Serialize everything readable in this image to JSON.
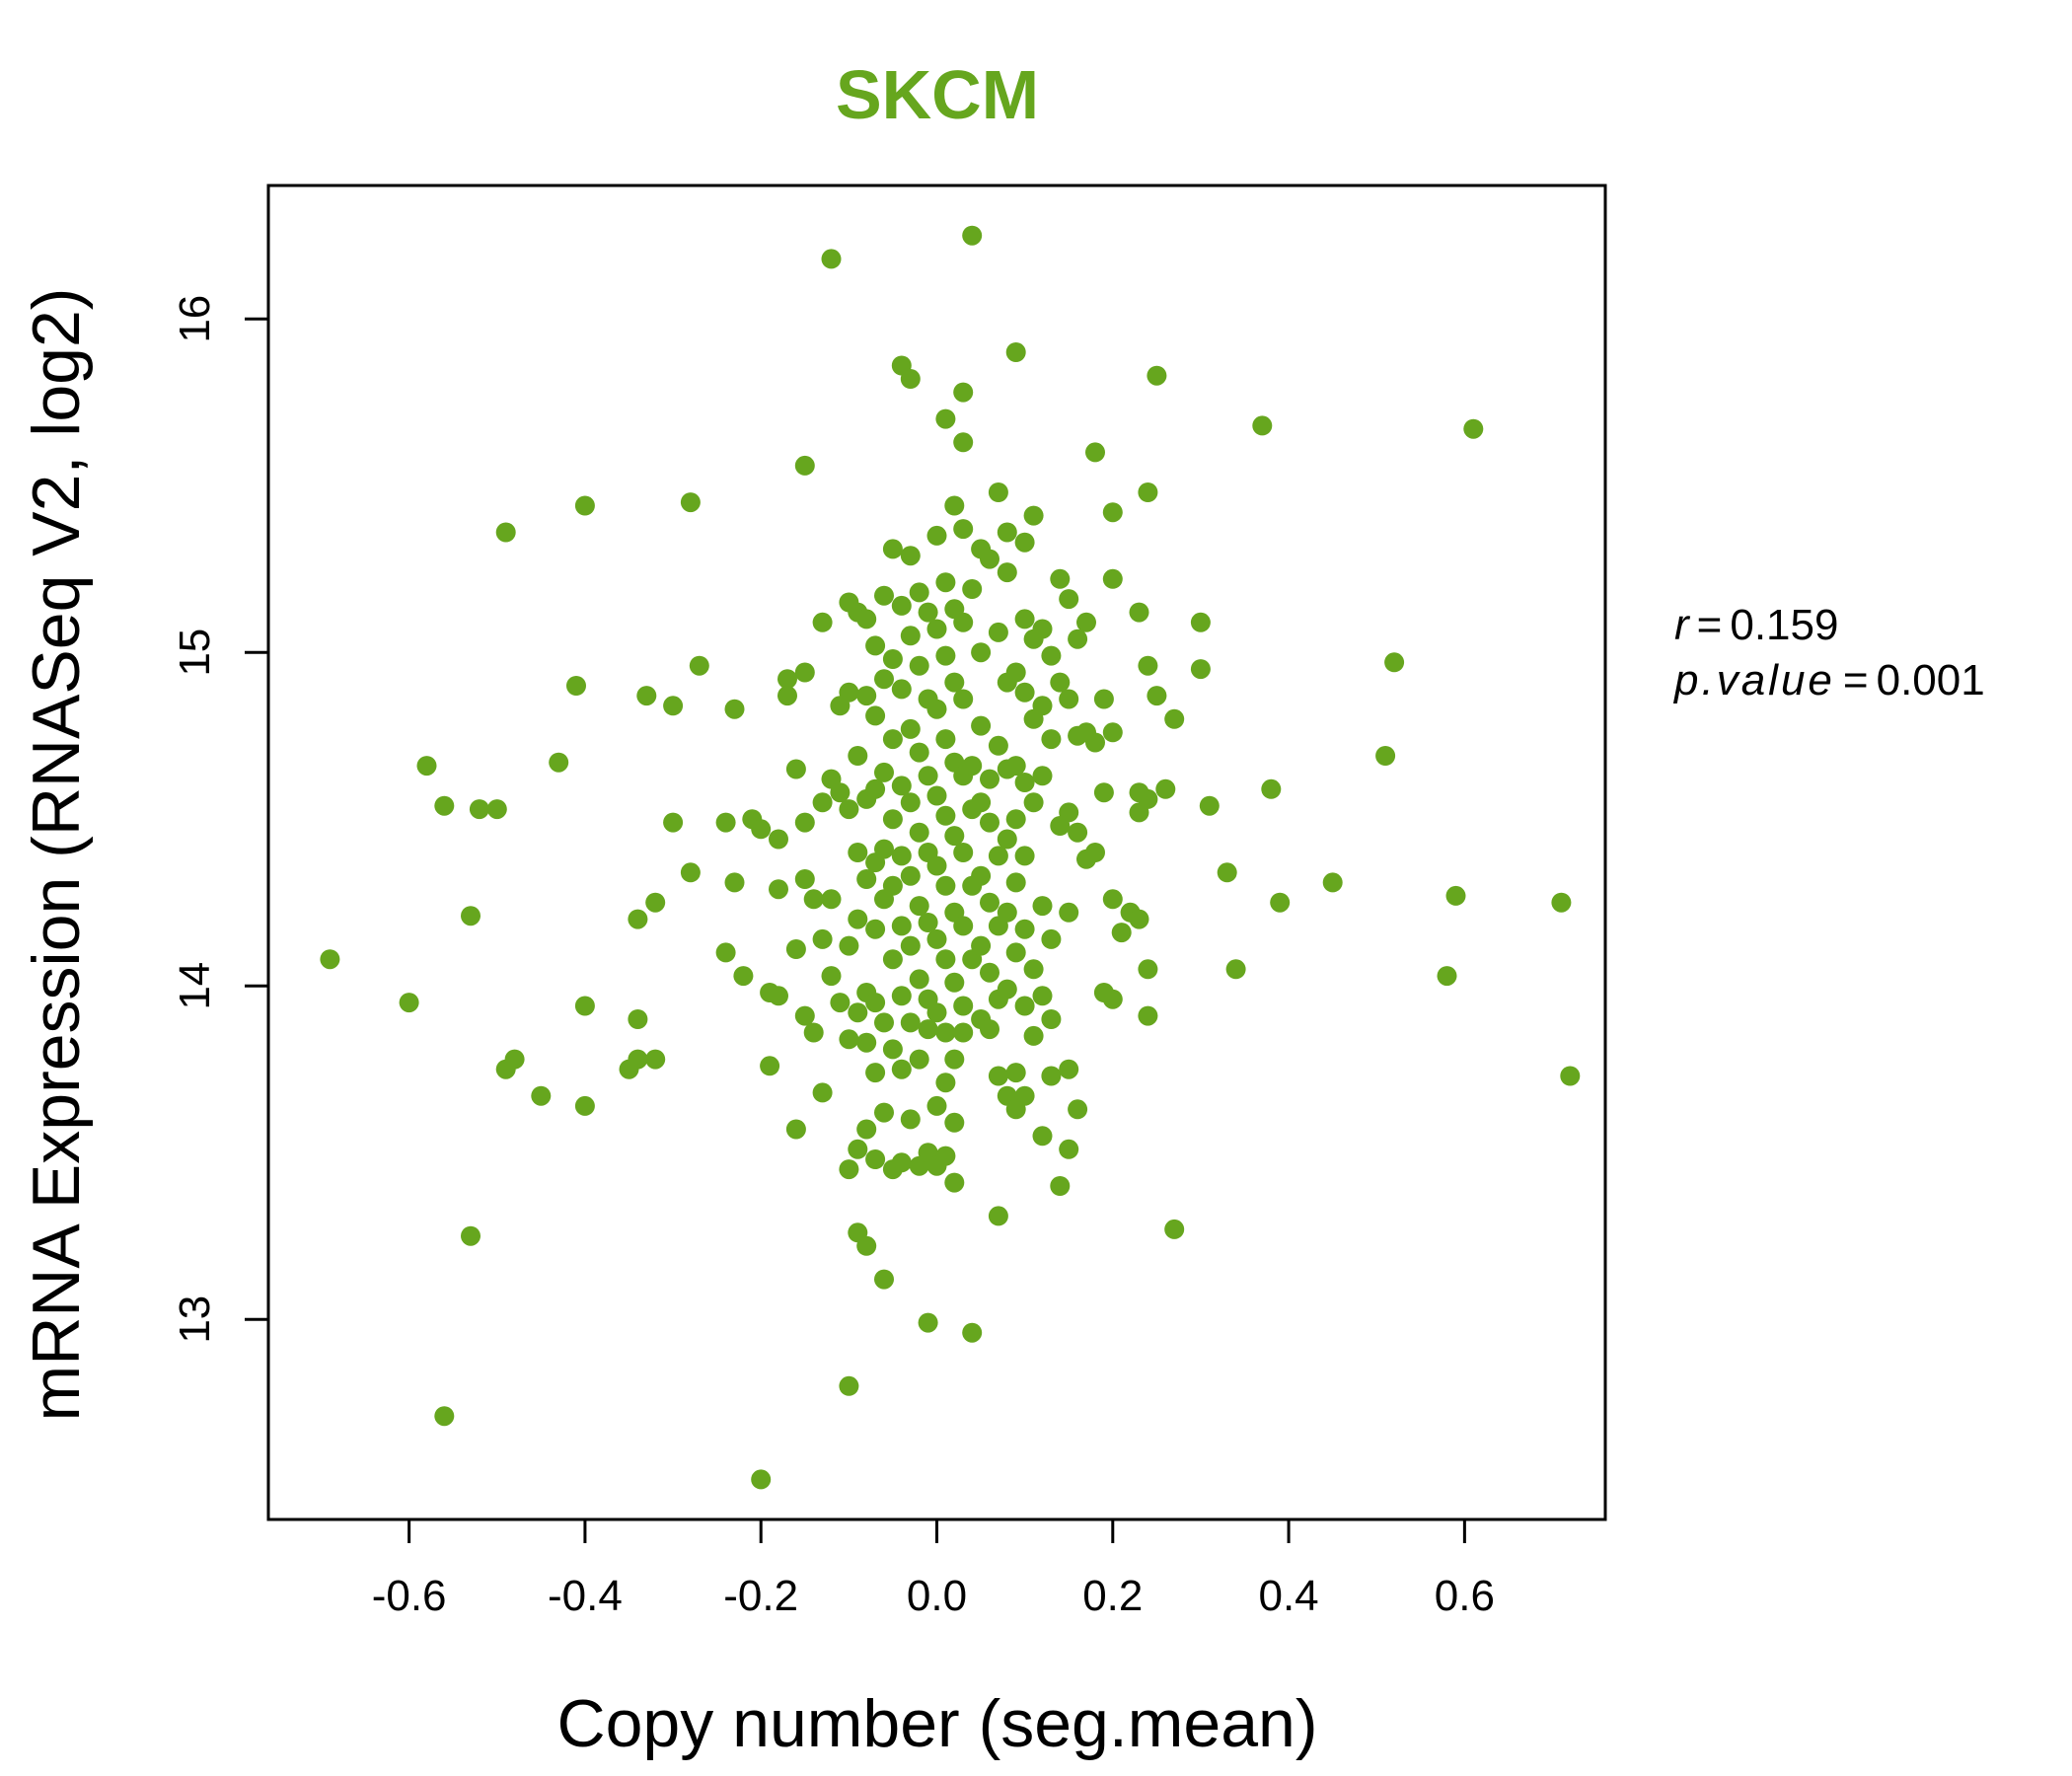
{
  "chart_data": {
    "type": "scatter",
    "title": "SKCM",
    "xlabel": "Copy number (seg.mean)",
    "ylabel": "mRNA Expression (RNASeq V2, log2)",
    "xlim": [
      -0.76,
      0.76
    ],
    "ylim": [
      12.4,
      16.4
    ],
    "xticks": [
      "-0.6",
      "-0.4",
      "-0.2",
      "0.0",
      "0.2",
      "0.4",
      "0.6"
    ],
    "xtick_values": [
      -0.6,
      -0.4,
      -0.2,
      0.0,
      0.2,
      0.4,
      0.6
    ],
    "yticks": [
      "13",
      "14",
      "15",
      "16"
    ],
    "ytick_values": [
      13,
      14,
      15,
      16
    ],
    "color": "#66a61e",
    "stats": {
      "r_label": "r",
      "r_value": "0.159",
      "p_label": "p.value",
      "p_value": "0.001"
    },
    "points": [
      [
        -0.69,
        14.08
      ],
      [
        -0.6,
        13.95
      ],
      [
        -0.58,
        14.66
      ],
      [
        -0.56,
        14.54
      ],
      [
        -0.56,
        12.71
      ],
      [
        -0.53,
        14.21
      ],
      [
        -0.53,
        13.25
      ],
      [
        -0.52,
        14.53
      ],
      [
        -0.5,
        14.53
      ],
      [
        -0.49,
        15.36
      ],
      [
        -0.49,
        13.75
      ],
      [
        -0.48,
        13.78
      ],
      [
        -0.45,
        13.67
      ],
      [
        -0.43,
        14.67
      ],
      [
        -0.41,
        14.9
      ],
      [
        -0.4,
        15.44
      ],
      [
        -0.4,
        13.94
      ],
      [
        -0.4,
        13.64
      ],
      [
        -0.35,
        13.75
      ],
      [
        -0.34,
        14.2
      ],
      [
        -0.34,
        13.9
      ],
      [
        -0.34,
        13.78
      ],
      [
        -0.33,
        14.87
      ],
      [
        -0.32,
        14.25
      ],
      [
        -0.32,
        13.78
      ],
      [
        -0.3,
        14.84
      ],
      [
        -0.3,
        14.49
      ],
      [
        -0.28,
        15.45
      ],
      [
        -0.28,
        14.34
      ],
      [
        -0.27,
        14.96
      ],
      [
        -0.24,
        14.49
      ],
      [
        -0.23,
        14.83
      ],
      [
        -0.23,
        14.31
      ],
      [
        -0.24,
        14.1
      ],
      [
        -0.22,
        14.03
      ],
      [
        -0.21,
        14.5
      ],
      [
        -0.2,
        14.47
      ],
      [
        -0.2,
        12.52
      ],
      [
        -0.19,
        13.98
      ],
      [
        -0.19,
        13.76
      ],
      [
        -0.18,
        14.44
      ],
      [
        -0.18,
        14.29
      ],
      [
        -0.18,
        13.97
      ],
      [
        -0.17,
        14.92
      ],
      [
        -0.17,
        14.87
      ],
      [
        -0.16,
        14.65
      ],
      [
        -0.16,
        14.11
      ],
      [
        -0.16,
        13.57
      ],
      [
        -0.15,
        15.56
      ],
      [
        -0.15,
        14.94
      ],
      [
        -0.15,
        14.49
      ],
      [
        -0.15,
        14.32
      ],
      [
        -0.15,
        13.91
      ],
      [
        -0.14,
        14.26
      ],
      [
        -0.14,
        13.86
      ],
      [
        -0.13,
        15.09
      ],
      [
        -0.13,
        14.55
      ],
      [
        -0.13,
        14.14
      ],
      [
        -0.13,
        13.68
      ],
      [
        -0.12,
        16.18
      ],
      [
        -0.12,
        14.62
      ],
      [
        -0.12,
        14.26
      ],
      [
        -0.12,
        14.03
      ],
      [
        -0.11,
        14.84
      ],
      [
        -0.11,
        14.58
      ],
      [
        -0.11,
        13.95
      ],
      [
        -0.1,
        15.15
      ],
      [
        -0.1,
        14.88
      ],
      [
        -0.1,
        14.53
      ],
      [
        -0.1,
        14.12
      ],
      [
        -0.1,
        13.84
      ],
      [
        -0.1,
        13.45
      ],
      [
        -0.1,
        12.8
      ],
      [
        -0.09,
        15.12
      ],
      [
        -0.09,
        14.69
      ],
      [
        -0.09,
        14.4
      ],
      [
        -0.09,
        14.2
      ],
      [
        -0.09,
        13.92
      ],
      [
        -0.09,
        13.51
      ],
      [
        -0.09,
        13.26
      ],
      [
        -0.08,
        15.1
      ],
      [
        -0.08,
        14.87
      ],
      [
        -0.08,
        14.56
      ],
      [
        -0.08,
        14.32
      ],
      [
        -0.08,
        13.98
      ],
      [
        -0.08,
        13.83
      ],
      [
        -0.08,
        13.57
      ],
      [
        -0.08,
        13.22
      ],
      [
        -0.07,
        15.02
      ],
      [
        -0.07,
        14.81
      ],
      [
        -0.07,
        14.59
      ],
      [
        -0.07,
        14.37
      ],
      [
        -0.07,
        14.17
      ],
      [
        -0.07,
        13.95
      ],
      [
        -0.07,
        13.74
      ],
      [
        -0.07,
        13.48
      ],
      [
        -0.06,
        15.17
      ],
      [
        -0.06,
        14.92
      ],
      [
        -0.06,
        14.64
      ],
      [
        -0.06,
        14.41
      ],
      [
        -0.06,
        14.26
      ],
      [
        -0.06,
        13.89
      ],
      [
        -0.06,
        13.62
      ],
      [
        -0.06,
        13.12
      ],
      [
        -0.05,
        15.31
      ],
      [
        -0.05,
        14.98
      ],
      [
        -0.05,
        14.74
      ],
      [
        -0.05,
        14.5
      ],
      [
        -0.05,
        14.3
      ],
      [
        -0.05,
        14.08
      ],
      [
        -0.05,
        13.81
      ],
      [
        -0.05,
        13.45
      ],
      [
        -0.04,
        15.86
      ],
      [
        -0.04,
        15.14
      ],
      [
        -0.04,
        14.89
      ],
      [
        -0.04,
        14.6
      ],
      [
        -0.04,
        14.39
      ],
      [
        -0.04,
        14.18
      ],
      [
        -0.04,
        13.97
      ],
      [
        -0.04,
        13.75
      ],
      [
        -0.04,
        13.47
      ],
      [
        -0.03,
        15.82
      ],
      [
        -0.03,
        15.29
      ],
      [
        -0.03,
        15.05
      ],
      [
        -0.03,
        14.77
      ],
      [
        -0.03,
        14.55
      ],
      [
        -0.03,
        14.33
      ],
      [
        -0.03,
        14.12
      ],
      [
        -0.03,
        13.89
      ],
      [
        -0.03,
        13.6
      ],
      [
        -0.02,
        15.18
      ],
      [
        -0.02,
        14.96
      ],
      [
        -0.02,
        14.7
      ],
      [
        -0.02,
        14.46
      ],
      [
        -0.02,
        14.24
      ],
      [
        -0.02,
        14.02
      ],
      [
        -0.02,
        13.78
      ],
      [
        -0.02,
        13.46
      ],
      [
        -0.01,
        15.12
      ],
      [
        -0.01,
        14.86
      ],
      [
        -0.01,
        14.63
      ],
      [
        -0.01,
        14.4
      ],
      [
        -0.01,
        14.19
      ],
      [
        -0.01,
        13.96
      ],
      [
        -0.01,
        13.87
      ],
      [
        -0.01,
        13.5
      ],
      [
        -0.01,
        12.99
      ],
      [
        0.0,
        15.35
      ],
      [
        0.0,
        15.07
      ],
      [
        0.0,
        14.83
      ],
      [
        0.0,
        14.57
      ],
      [
        0.0,
        14.36
      ],
      [
        0.0,
        14.14
      ],
      [
        0.0,
        13.92
      ],
      [
        0.0,
        13.64
      ],
      [
        0.0,
        13.46
      ],
      [
        0.01,
        15.7
      ],
      [
        0.01,
        15.21
      ],
      [
        0.01,
        14.99
      ],
      [
        0.01,
        14.74
      ],
      [
        0.01,
        14.51
      ],
      [
        0.01,
        14.3
      ],
      [
        0.01,
        14.08
      ],
      [
        0.01,
        13.86
      ],
      [
        0.01,
        13.71
      ],
      [
        0.01,
        13.49
      ],
      [
        0.02,
        15.44
      ],
      [
        0.02,
        15.13
      ],
      [
        0.02,
        14.91
      ],
      [
        0.02,
        14.67
      ],
      [
        0.02,
        14.45
      ],
      [
        0.02,
        14.22
      ],
      [
        0.02,
        14.01
      ],
      [
        0.02,
        13.78
      ],
      [
        0.02,
        13.59
      ],
      [
        0.02,
        13.41
      ],
      [
        0.03,
        15.78
      ],
      [
        0.03,
        15.63
      ],
      [
        0.03,
        15.37
      ],
      [
        0.03,
        15.09
      ],
      [
        0.03,
        14.86
      ],
      [
        0.03,
        14.63
      ],
      [
        0.03,
        14.4
      ],
      [
        0.03,
        14.18
      ],
      [
        0.03,
        13.94
      ],
      [
        0.03,
        13.86
      ],
      [
        0.04,
        16.25
      ],
      [
        0.04,
        15.19
      ],
      [
        0.04,
        14.66
      ],
      [
        0.04,
        14.53
      ],
      [
        0.04,
        14.3
      ],
      [
        0.04,
        14.08
      ],
      [
        0.04,
        12.96
      ],
      [
        0.05,
        15.31
      ],
      [
        0.05,
        15.0
      ],
      [
        0.05,
        14.78
      ],
      [
        0.05,
        14.55
      ],
      [
        0.05,
        14.33
      ],
      [
        0.05,
        14.12
      ],
      [
        0.05,
        13.9
      ],
      [
        0.06,
        15.28
      ],
      [
        0.06,
        14.62
      ],
      [
        0.06,
        14.49
      ],
      [
        0.06,
        14.25
      ],
      [
        0.06,
        14.04
      ],
      [
        0.06,
        13.87
      ],
      [
        0.07,
        15.48
      ],
      [
        0.07,
        15.06
      ],
      [
        0.07,
        14.72
      ],
      [
        0.07,
        14.39
      ],
      [
        0.07,
        14.18
      ],
      [
        0.07,
        13.96
      ],
      [
        0.07,
        13.73
      ],
      [
        0.07,
        13.31
      ],
      [
        0.08,
        15.36
      ],
      [
        0.08,
        15.24
      ],
      [
        0.08,
        14.91
      ],
      [
        0.08,
        14.65
      ],
      [
        0.08,
        14.44
      ],
      [
        0.08,
        14.22
      ],
      [
        0.08,
        13.99
      ],
      [
        0.08,
        13.67
      ],
      [
        0.09,
        15.9
      ],
      [
        0.09,
        14.94
      ],
      [
        0.09,
        14.66
      ],
      [
        0.09,
        14.5
      ],
      [
        0.09,
        14.31
      ],
      [
        0.09,
        14.1
      ],
      [
        0.09,
        13.74
      ],
      [
        0.09,
        13.63
      ],
      [
        0.1,
        15.33
      ],
      [
        0.1,
        15.1
      ],
      [
        0.1,
        14.88
      ],
      [
        0.1,
        14.61
      ],
      [
        0.1,
        14.39
      ],
      [
        0.1,
        14.17
      ],
      [
        0.1,
        13.94
      ],
      [
        0.1,
        13.67
      ],
      [
        0.11,
        15.41
      ],
      [
        0.11,
        15.04
      ],
      [
        0.11,
        14.8
      ],
      [
        0.11,
        14.55
      ],
      [
        0.11,
        14.05
      ],
      [
        0.11,
        13.85
      ],
      [
        0.12,
        15.07
      ],
      [
        0.12,
        14.84
      ],
      [
        0.12,
        14.63
      ],
      [
        0.12,
        14.24
      ],
      [
        0.12,
        13.97
      ],
      [
        0.12,
        13.55
      ],
      [
        0.13,
        14.99
      ],
      [
        0.13,
        14.74
      ],
      [
        0.13,
        14.14
      ],
      [
        0.13,
        13.9
      ],
      [
        0.13,
        13.73
      ],
      [
        0.14,
        15.22
      ],
      [
        0.14,
        14.91
      ],
      [
        0.14,
        14.48
      ],
      [
        0.14,
        13.4
      ],
      [
        0.15,
        15.16
      ],
      [
        0.15,
        14.86
      ],
      [
        0.15,
        14.52
      ],
      [
        0.15,
        14.22
      ],
      [
        0.15,
        13.75
      ],
      [
        0.15,
        13.51
      ],
      [
        0.16,
        15.04
      ],
      [
        0.16,
        14.75
      ],
      [
        0.16,
        14.46
      ],
      [
        0.16,
        13.63
      ],
      [
        0.17,
        15.09
      ],
      [
        0.17,
        14.76
      ],
      [
        0.17,
        14.38
      ],
      [
        0.18,
        15.6
      ],
      [
        0.18,
        14.73
      ],
      [
        0.18,
        14.4
      ],
      [
        0.19,
        14.86
      ],
      [
        0.19,
        14.58
      ],
      [
        0.19,
        13.98
      ],
      [
        0.2,
        15.42
      ],
      [
        0.2,
        15.22
      ],
      [
        0.2,
        14.76
      ],
      [
        0.2,
        14.26
      ],
      [
        0.2,
        13.96
      ],
      [
        0.21,
        14.16
      ],
      [
        0.22,
        14.22
      ],
      [
        0.23,
        15.12
      ],
      [
        0.23,
        14.58
      ],
      [
        0.23,
        14.52
      ],
      [
        0.23,
        14.2
      ],
      [
        0.24,
        15.48
      ],
      [
        0.24,
        14.96
      ],
      [
        0.24,
        14.56
      ],
      [
        0.24,
        14.05
      ],
      [
        0.24,
        13.91
      ],
      [
        0.25,
        14.87
      ],
      [
        0.25,
        15.83
      ],
      [
        0.26,
        14.59
      ],
      [
        0.27,
        14.8
      ],
      [
        0.27,
        13.27
      ],
      [
        0.3,
        15.09
      ],
      [
        0.3,
        14.95
      ],
      [
        0.31,
        14.54
      ],
      [
        0.33,
        14.34
      ],
      [
        0.34,
        14.05
      ],
      [
        0.37,
        15.68
      ],
      [
        0.38,
        14.59
      ],
      [
        0.39,
        14.25
      ],
      [
        0.45,
        14.31
      ],
      [
        0.51,
        14.69
      ],
      [
        0.52,
        14.97
      ],
      [
        0.58,
        14.03
      ],
      [
        0.59,
        14.27
      ],
      [
        0.61,
        15.67
      ],
      [
        0.71,
        14.25
      ],
      [
        0.72,
        13.73
      ]
    ]
  }
}
